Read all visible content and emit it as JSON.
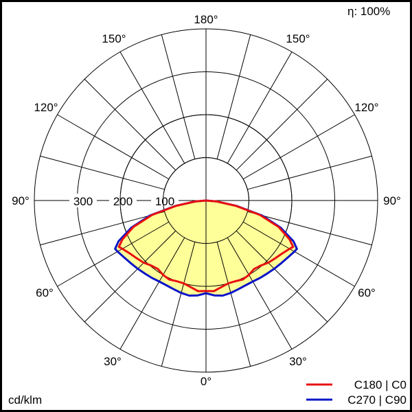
{
  "chart_data": {
    "type": "polar",
    "title": "",
    "efficiency_label": "η: 100%",
    "unit_label": "cd/klm",
    "radial_ticks": [
      100,
      200,
      300
    ],
    "radial_max": 400,
    "angle_labels_left": [
      "180°",
      "150°",
      "120°",
      "90°",
      "60°",
      "30°",
      "0°"
    ],
    "angle_labels": {
      "top": "180°",
      "bottom": "0°",
      "left": [
        "150°",
        "120°",
        "90°",
        "60°",
        "30°"
      ],
      "right": [
        "150°",
        "120°",
        "90°",
        "60°",
        "30°"
      ]
    },
    "grid_angle_step_deg": 15,
    "angles_deg": [
      0,
      5,
      10,
      15,
      20,
      25,
      30,
      35,
      40,
      45,
      50,
      55,
      60,
      62,
      65,
      70,
      75,
      80,
      85,
      90
    ],
    "series": [
      {
        "name": "C180 | C0",
        "color": "#e81010",
        "values": [
          211,
          212,
          205,
          200,
          200,
          203,
          200,
          195,
          198,
          205,
          210,
          216,
          225,
          230,
          215,
          180,
          130,
          70,
          25,
          0
        ]
      },
      {
        "name": "C270 | C90",
        "color": "#0a14c8",
        "values": [
          216,
          222,
          225,
          223,
          220,
          218,
          218,
          220,
          222,
          225,
          228,
          232,
          238,
          240,
          225,
          185,
          135,
          72,
          25,
          0
        ]
      }
    ],
    "fill_color": "#ffff99",
    "legend_position": "bottom-right",
    "grid": true
  },
  "legend": {
    "items": [
      {
        "label": "C180 | C0",
        "color": "#e81010"
      },
      {
        "label": "C270 | C90",
        "color": "#0a14c8"
      }
    ]
  },
  "labels": {
    "efficiency": "η: 100%",
    "unit": "cd/klm",
    "r100": "100",
    "r200": "200",
    "r300": "300",
    "a180": "180°",
    "a150l": "150°",
    "a150r": "150°",
    "a120l": "120°",
    "a120r": "120°",
    "a90l": "90°",
    "a90r": "90°",
    "a60l": "60°",
    "a60r": "60°",
    "a30l": "30°",
    "a30r": "30°",
    "a0": "0°"
  }
}
